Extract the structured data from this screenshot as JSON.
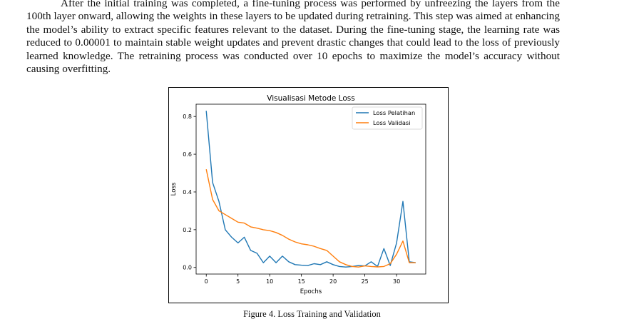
{
  "paragraph": "After the initial training was completed, a fine-tuning process was performed by unfreezing the layers from the 100th layer onward, allowing the weights in these layers to be updated during retraining. This step was aimed at enhancing the model’s ability to extract specific features relevant to the dataset. During the fine-tuning stage, the learning rate was reduced to 0.00001 to maintain stable weight updates and prevent drastic changes that could lead to the loss of previously learned knowledge. The retraining process was conducted over 10 epochs to maximize the model’s accuracy without causing overfitting.",
  "caption": "Figure 4. Loss Training and Validation",
  "chart_data": {
    "type": "line",
    "title": "Visualisasi Metode Loss",
    "xlabel": "Epochs",
    "ylabel": "Loss",
    "xlim": [
      -1.6,
      34.6
    ],
    "ylim": [
      -0.035,
      0.865
    ],
    "xticks": [
      0,
      5,
      10,
      15,
      20,
      25,
      30
    ],
    "yticks": [
      0.0,
      0.2,
      0.4,
      0.6,
      0.8
    ],
    "ytick_labels": [
      "0.0",
      "0.2",
      "0.4",
      "0.6",
      "0.8"
    ],
    "legend_position": "top-right",
    "grid": false,
    "x": [
      0,
      1,
      2,
      3,
      4,
      5,
      6,
      7,
      8,
      9,
      10,
      11,
      12,
      13,
      14,
      15,
      16,
      17,
      18,
      19,
      20,
      21,
      22,
      23,
      24,
      25,
      26,
      27,
      28,
      29,
      30,
      31,
      32,
      33
    ],
    "series": [
      {
        "name": "Loss Pelatihan",
        "color": "#1f77b4",
        "values": [
          0.83,
          0.45,
          0.35,
          0.2,
          0.16,
          0.13,
          0.16,
          0.09,
          0.075,
          0.025,
          0.06,
          0.025,
          0.06,
          0.03,
          0.015,
          0.012,
          0.01,
          0.02,
          0.015,
          0.03,
          0.015,
          0.005,
          0.002,
          0.005,
          0.01,
          0.008,
          0.03,
          0.005,
          0.1,
          0.01,
          0.13,
          0.35,
          0.03,
          0.025
        ]
      },
      {
        "name": "Loss Validasi",
        "color": "#ff7f0e",
        "values": [
          0.52,
          0.36,
          0.3,
          0.28,
          0.26,
          0.24,
          0.235,
          0.215,
          0.208,
          0.2,
          0.195,
          0.185,
          0.17,
          0.15,
          0.135,
          0.125,
          0.12,
          0.112,
          0.1,
          0.09,
          0.06,
          0.03,
          0.015,
          0.005,
          0.002,
          0.008,
          0.005,
          0.003,
          0.005,
          0.02,
          0.07,
          0.14,
          0.025,
          0.025
        ]
      }
    ]
  }
}
